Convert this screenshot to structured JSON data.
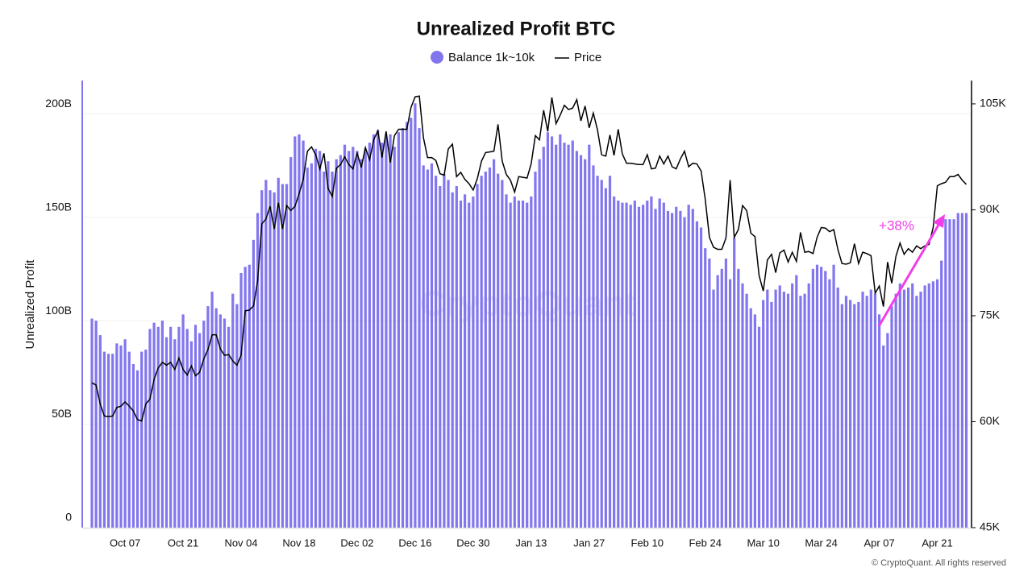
{
  "chart_data": {
    "type": "bar",
    "title": "Unrealized Profit BTC",
    "y_label": "Unrealized Profit",
    "watermark": "CryptoQuant",
    "footer": "© CryptoQuant. All rights reserved",
    "annotation": "+38%",
    "annotation_color": "#f03ee8",
    "categories": [
      null,
      null,
      null,
      null,
      null,
      null,
      null,
      null,
      "Oct 07",
      null,
      null,
      null,
      null,
      null,
      null,
      null,
      null,
      null,
      null,
      null,
      null,
      null,
      "Oct 21",
      null,
      null,
      null,
      null,
      null,
      null,
      null,
      null,
      null,
      null,
      null,
      null,
      null,
      "Nov 04",
      null,
      null,
      null,
      null,
      null,
      null,
      null,
      null,
      null,
      null,
      null,
      null,
      null,
      "Nov 18",
      null,
      null,
      null,
      null,
      null,
      null,
      null,
      null,
      null,
      null,
      null,
      null,
      null,
      "Dec 02",
      null,
      null,
      null,
      null,
      null,
      null,
      null,
      null,
      null,
      null,
      null,
      null,
      null,
      "Dec 16",
      null,
      null,
      null,
      null,
      null,
      null,
      null,
      null,
      null,
      null,
      null,
      null,
      null,
      "Dec 30",
      null,
      null,
      null,
      null,
      null,
      null,
      null,
      null,
      null,
      null,
      null,
      null,
      null,
      "Jan 13",
      null,
      null,
      null,
      null,
      null,
      null,
      null,
      null,
      null,
      null,
      null,
      null,
      null,
      "Jan 27",
      null,
      null,
      null,
      null,
      null,
      null,
      null,
      null,
      null,
      null,
      null,
      null,
      null,
      "Feb 10",
      null,
      null,
      null,
      null,
      null,
      null,
      null,
      null,
      null,
      null,
      null,
      null,
      null,
      "Feb 24",
      null,
      null,
      null,
      null,
      null,
      null,
      null,
      null,
      null,
      null,
      null,
      null,
      null,
      "Mar 10",
      null,
      null,
      null,
      null,
      null,
      null,
      null,
      null,
      null,
      null,
      null,
      null,
      null,
      "Mar 24",
      null,
      null,
      null,
      null,
      null,
      null,
      null,
      null,
      null,
      null,
      null,
      null,
      null,
      "Apr 07",
      null,
      null,
      null,
      null,
      null,
      null,
      null,
      null,
      null,
      null,
      null,
      null,
      null,
      "Apr 21",
      null,
      null,
      null,
      null,
      null,
      null,
      null
    ],
    "series": [
      {
        "name": "Balance 1k~10k",
        "type": "bar",
        "color": "#8276ee",
        "values": [
          101,
          100,
          93,
          85,
          84,
          84,
          89,
          88,
          91,
          85,
          79,
          76,
          85,
          86,
          96,
          99,
          97,
          100,
          92,
          97,
          91,
          97,
          103,
          96,
          90,
          98,
          94,
          100,
          107,
          114,
          106,
          103,
          101,
          97,
          113,
          108,
          123,
          126,
          127,
          139,
          152,
          163,
          168,
          163,
          162,
          169,
          166,
          166,
          179,
          189,
          190,
          187,
          174,
          176,
          183,
          182,
          172,
          177,
          172,
          178,
          180,
          185,
          182,
          184,
          182,
          178,
          183,
          186,
          190,
          192,
          186,
          189,
          190,
          184,
          191,
          193,
          196,
          198,
          205,
          193,
          175,
          173,
          176,
          170,
          165,
          171,
          168,
          162,
          165,
          158,
          161,
          157,
          160,
          166,
          170,
          172,
          174,
          178,
          171,
          168,
          161,
          157,
          160,
          158,
          158,
          157,
          160,
          172,
          178,
          184,
          191,
          189,
          185,
          190,
          186,
          185,
          187,
          182,
          180,
          178,
          185,
          175,
          170,
          168,
          164,
          170,
          160,
          158,
          157,
          157,
          156,
          158,
          155,
          156,
          158,
          160,
          154,
          159,
          157,
          153,
          152,
          155,
          153,
          150,
          156,
          154,
          148,
          145,
          135,
          130,
          115,
          122,
          125,
          130,
          120,
          140,
          125,
          118,
          113,
          106,
          103,
          97,
          110,
          115,
          109,
          115,
          117,
          114,
          113,
          118,
          122,
          112,
          113,
          118,
          125,
          127,
          126,
          124,
          120,
          127,
          116,
          108,
          112,
          110,
          108,
          109,
          114,
          112,
          115,
          113,
          103,
          88,
          94,
          107,
          113,
          118,
          115,
          116,
          118,
          112,
          114,
          117,
          118,
          119,
          120,
          129,
          149,
          149,
          149,
          152,
          152,
          152
        ]
      },
      {
        "name": "Price",
        "type": "line",
        "axis": "y2",
        "color": "#000000",
        "values": [
          65.5,
          65.2,
          62.5,
          60.8,
          60.7,
          60.8,
          62.0,
          62.2,
          62.8,
          62.2,
          61.5,
          60.3,
          60.1,
          62.5,
          63.2,
          66.0,
          67.6,
          68.4,
          68.0,
          68.4,
          67.4,
          69.0,
          67.4,
          66.6,
          67.9,
          66.5,
          67.0,
          68.9,
          70.2,
          72.3,
          72.3,
          70.3,
          69.4,
          69.5,
          68.6,
          68.0,
          69.4,
          75.7,
          75.8,
          76.4,
          80.0,
          88.0,
          88.7,
          90.5,
          87.3,
          91.0,
          87.3,
          90.6,
          89.9,
          90.5,
          92.3,
          94.3,
          98.3,
          98.9,
          97.8,
          95.8,
          98.0,
          93.0,
          91.9,
          95.9,
          96.4,
          97.5,
          96.4,
          95.8,
          98.0,
          96.0,
          98.8,
          97.1,
          99.9,
          101.2,
          97.4,
          101.1,
          96.7,
          100.5,
          101.4,
          101.4,
          101.4,
          104.5,
          106.0,
          106.1,
          100.2,
          97.4,
          97.4,
          97.0,
          95.1,
          94.9,
          98.6,
          99.3,
          94.7,
          95.3,
          94.3,
          93.7,
          92.8,
          94.4,
          96.9,
          98.1,
          98.2,
          98.3,
          102.1,
          96.9,
          95.0,
          94.2,
          92.5,
          94.7,
          94.6,
          94.5,
          96.5,
          100.5,
          99.9,
          104.1,
          101.1,
          105.9,
          102.2,
          103.4,
          104.8,
          104.2,
          104.4,
          105.6,
          102.6,
          104.7,
          101.6,
          103.7,
          101.3,
          97.8,
          97.6,
          100.6,
          97.7,
          101.4,
          97.9,
          96.6,
          96.6,
          96.5,
          96.4,
          96.4,
          97.8,
          95.8,
          95.9,
          97.6,
          96.5,
          97.6,
          96.1,
          95.8,
          97.2,
          98.3,
          96.1,
          96.6,
          96.5,
          95.5,
          91.5,
          86.1,
          84.7,
          84.4,
          84.4,
          86.0,
          94.2,
          86.1,
          87.2,
          90.6,
          89.9,
          86.7,
          86.2,
          80.7,
          78.5,
          82.9,
          83.7,
          81.1,
          83.9,
          84.3,
          82.6,
          84.0,
          82.7,
          86.8,
          84.0,
          84.1,
          83.8,
          86.1,
          87.5,
          87.4,
          86.9,
          87.2,
          84.4,
          82.4,
          82.3,
          82.5,
          85.2,
          82.4,
          84.0,
          83.8,
          83.5,
          78.2,
          79.2,
          76.3,
          82.6,
          79.6,
          83.4,
          85.3,
          83.7,
          84.5,
          84.0,
          84.9,
          84.5,
          84.9,
          85.1,
          87.5,
          93.4,
          93.7,
          93.9,
          94.7,
          94.7,
          95.0,
          94.2,
          93.6
        ]
      }
    ],
    "ylim": [
      0,
      216
    ],
    "yticks": [
      {
        "value": 0,
        "label": "0"
      },
      {
        "value": 50,
        "label": "50B"
      },
      {
        "value": 100,
        "label": "100B"
      },
      {
        "value": 150,
        "label": "150B"
      },
      {
        "value": 200,
        "label": "200B"
      }
    ],
    "y2lim": [
      45,
      108.3
    ],
    "y2ticks": [
      {
        "value": 45,
        "label": "45K"
      },
      {
        "value": 60,
        "label": "60K"
      },
      {
        "value": 75,
        "label": "75K"
      },
      {
        "value": 90,
        "label": "90K"
      },
      {
        "value": 105,
        "label": "105K"
      }
    ],
    "grid": true
  }
}
